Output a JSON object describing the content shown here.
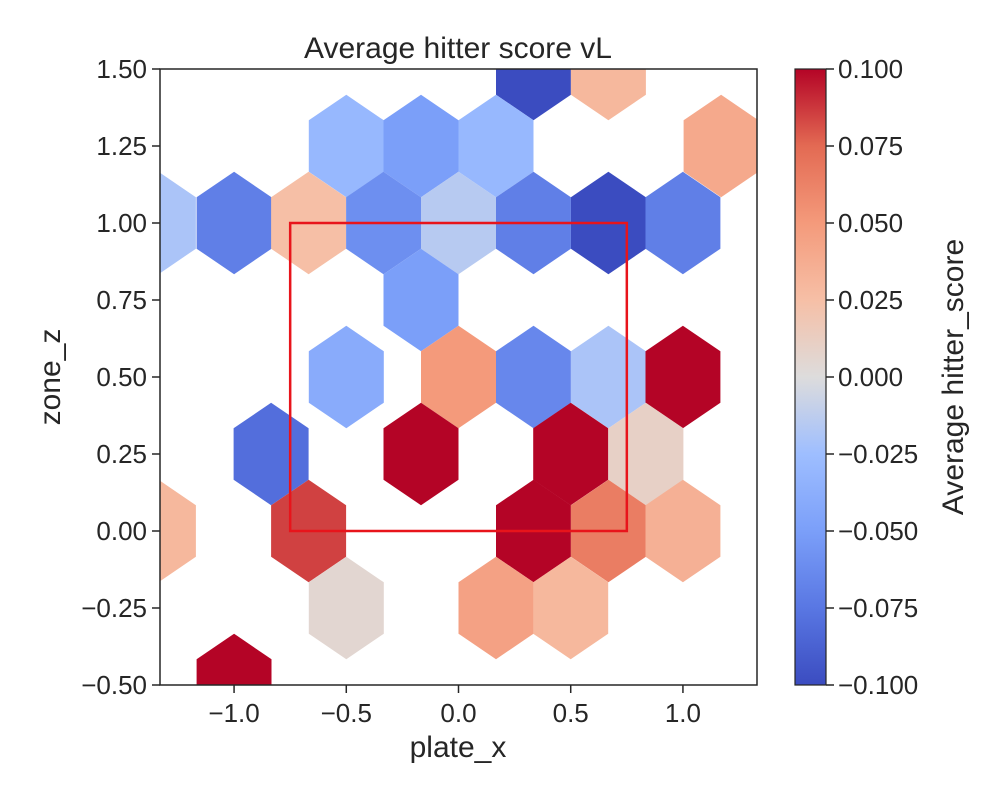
{
  "chart_data": {
    "type": "heatmap",
    "subtype": "hexbin",
    "title": "Average hitter score vL",
    "xlabel": "plate_x",
    "ylabel": "zone_z",
    "xlim": [
      -1.33,
      1.33
    ],
    "ylim": [
      -0.5,
      1.5
    ],
    "xticks": [
      -1.0,
      -0.5,
      0.0,
      0.5,
      1.0
    ],
    "xtick_labels": [
      "−1.0",
      "−0.5",
      "0.0",
      "0.5",
      "1.0"
    ],
    "yticks": [
      -0.5,
      -0.25,
      0.0,
      0.25,
      0.5,
      0.75,
      1.0,
      1.25,
      1.5
    ],
    "ytick_labels": [
      "−0.50",
      "−0.25",
      "0.00",
      "0.25",
      "0.50",
      "0.75",
      "1.00",
      "1.25",
      "1.50"
    ],
    "grid": false,
    "colormap": "coolwarm",
    "colorbar": {
      "label": "Average hitter_score",
      "min": -0.1,
      "max": 0.1,
      "ticks": [
        -0.1,
        -0.075,
        -0.05,
        -0.025,
        0.0,
        0.025,
        0.05,
        0.075,
        0.1
      ],
      "tick_labels": [
        "−0.100",
        "−0.075",
        "−0.050",
        "−0.025",
        "0.000",
        "0.025",
        "0.050",
        "0.075",
        "0.100"
      ]
    },
    "strike_zone": {
      "x": [
        -0.75,
        0.75
      ],
      "z": [
        0.0,
        1.0
      ],
      "color": "#e8141b"
    },
    "cells": [
      {
        "x": 0.334,
        "z": 1.5,
        "value": -0.1
      },
      {
        "x": 0.668,
        "z": 1.5,
        "value": 0.03
      },
      {
        "x": -0.5,
        "z": 1.25,
        "value": -0.03
      },
      {
        "x": -0.167,
        "z": 1.25,
        "value": -0.05
      },
      {
        "x": 0.167,
        "z": 1.25,
        "value": -0.03
      },
      {
        "x": 1.17,
        "z": 1.25,
        "value": 0.04
      },
      {
        "x": -1.337,
        "z": 1.0,
        "value": -0.02
      },
      {
        "x": -1.0,
        "z": 1.0,
        "value": -0.07
      },
      {
        "x": -0.668,
        "z": 1.0,
        "value": 0.025
      },
      {
        "x": -0.334,
        "z": 1.0,
        "value": -0.06
      },
      {
        "x": 0.0,
        "z": 1.0,
        "value": -0.015
      },
      {
        "x": 0.334,
        "z": 1.0,
        "value": -0.07
      },
      {
        "x": 0.668,
        "z": 1.0,
        "value": -0.1
      },
      {
        "x": 1.0,
        "z": 1.0,
        "value": -0.07
      },
      {
        "x": -0.167,
        "z": 0.75,
        "value": -0.05
      },
      {
        "x": -0.5,
        "z": 0.5,
        "value": -0.04
      },
      {
        "x": 0.0,
        "z": 0.5,
        "value": 0.05
      },
      {
        "x": 0.334,
        "z": 0.5,
        "value": -0.065
      },
      {
        "x": 0.668,
        "z": 0.5,
        "value": -0.02
      },
      {
        "x": 1.0,
        "z": 0.5,
        "value": 0.1
      },
      {
        "x": -0.835,
        "z": 0.25,
        "value": -0.08
      },
      {
        "x": -0.167,
        "z": 0.25,
        "value": 0.1
      },
      {
        "x": 0.5,
        "z": 0.25,
        "value": 0.1
      },
      {
        "x": 0.835,
        "z": 0.25,
        "value": 0.01
      },
      {
        "x": -1.337,
        "z": 0.0,
        "value": 0.03
      },
      {
        "x": -0.668,
        "z": 0.0,
        "value": 0.085
      },
      {
        "x": 0.334,
        "z": 0.0,
        "value": 0.1
      },
      {
        "x": 0.668,
        "z": 0.0,
        "value": 0.065
      },
      {
        "x": 1.0,
        "z": 0.0,
        "value": 0.035
      },
      {
        "x": -0.5,
        "z": -0.25,
        "value": 0.005
      },
      {
        "x": 0.167,
        "z": -0.25,
        "value": 0.045
      },
      {
        "x": 0.5,
        "z": -0.25,
        "value": 0.03
      },
      {
        "x": -1.0,
        "z": -0.5,
        "value": 0.1
      }
    ]
  }
}
